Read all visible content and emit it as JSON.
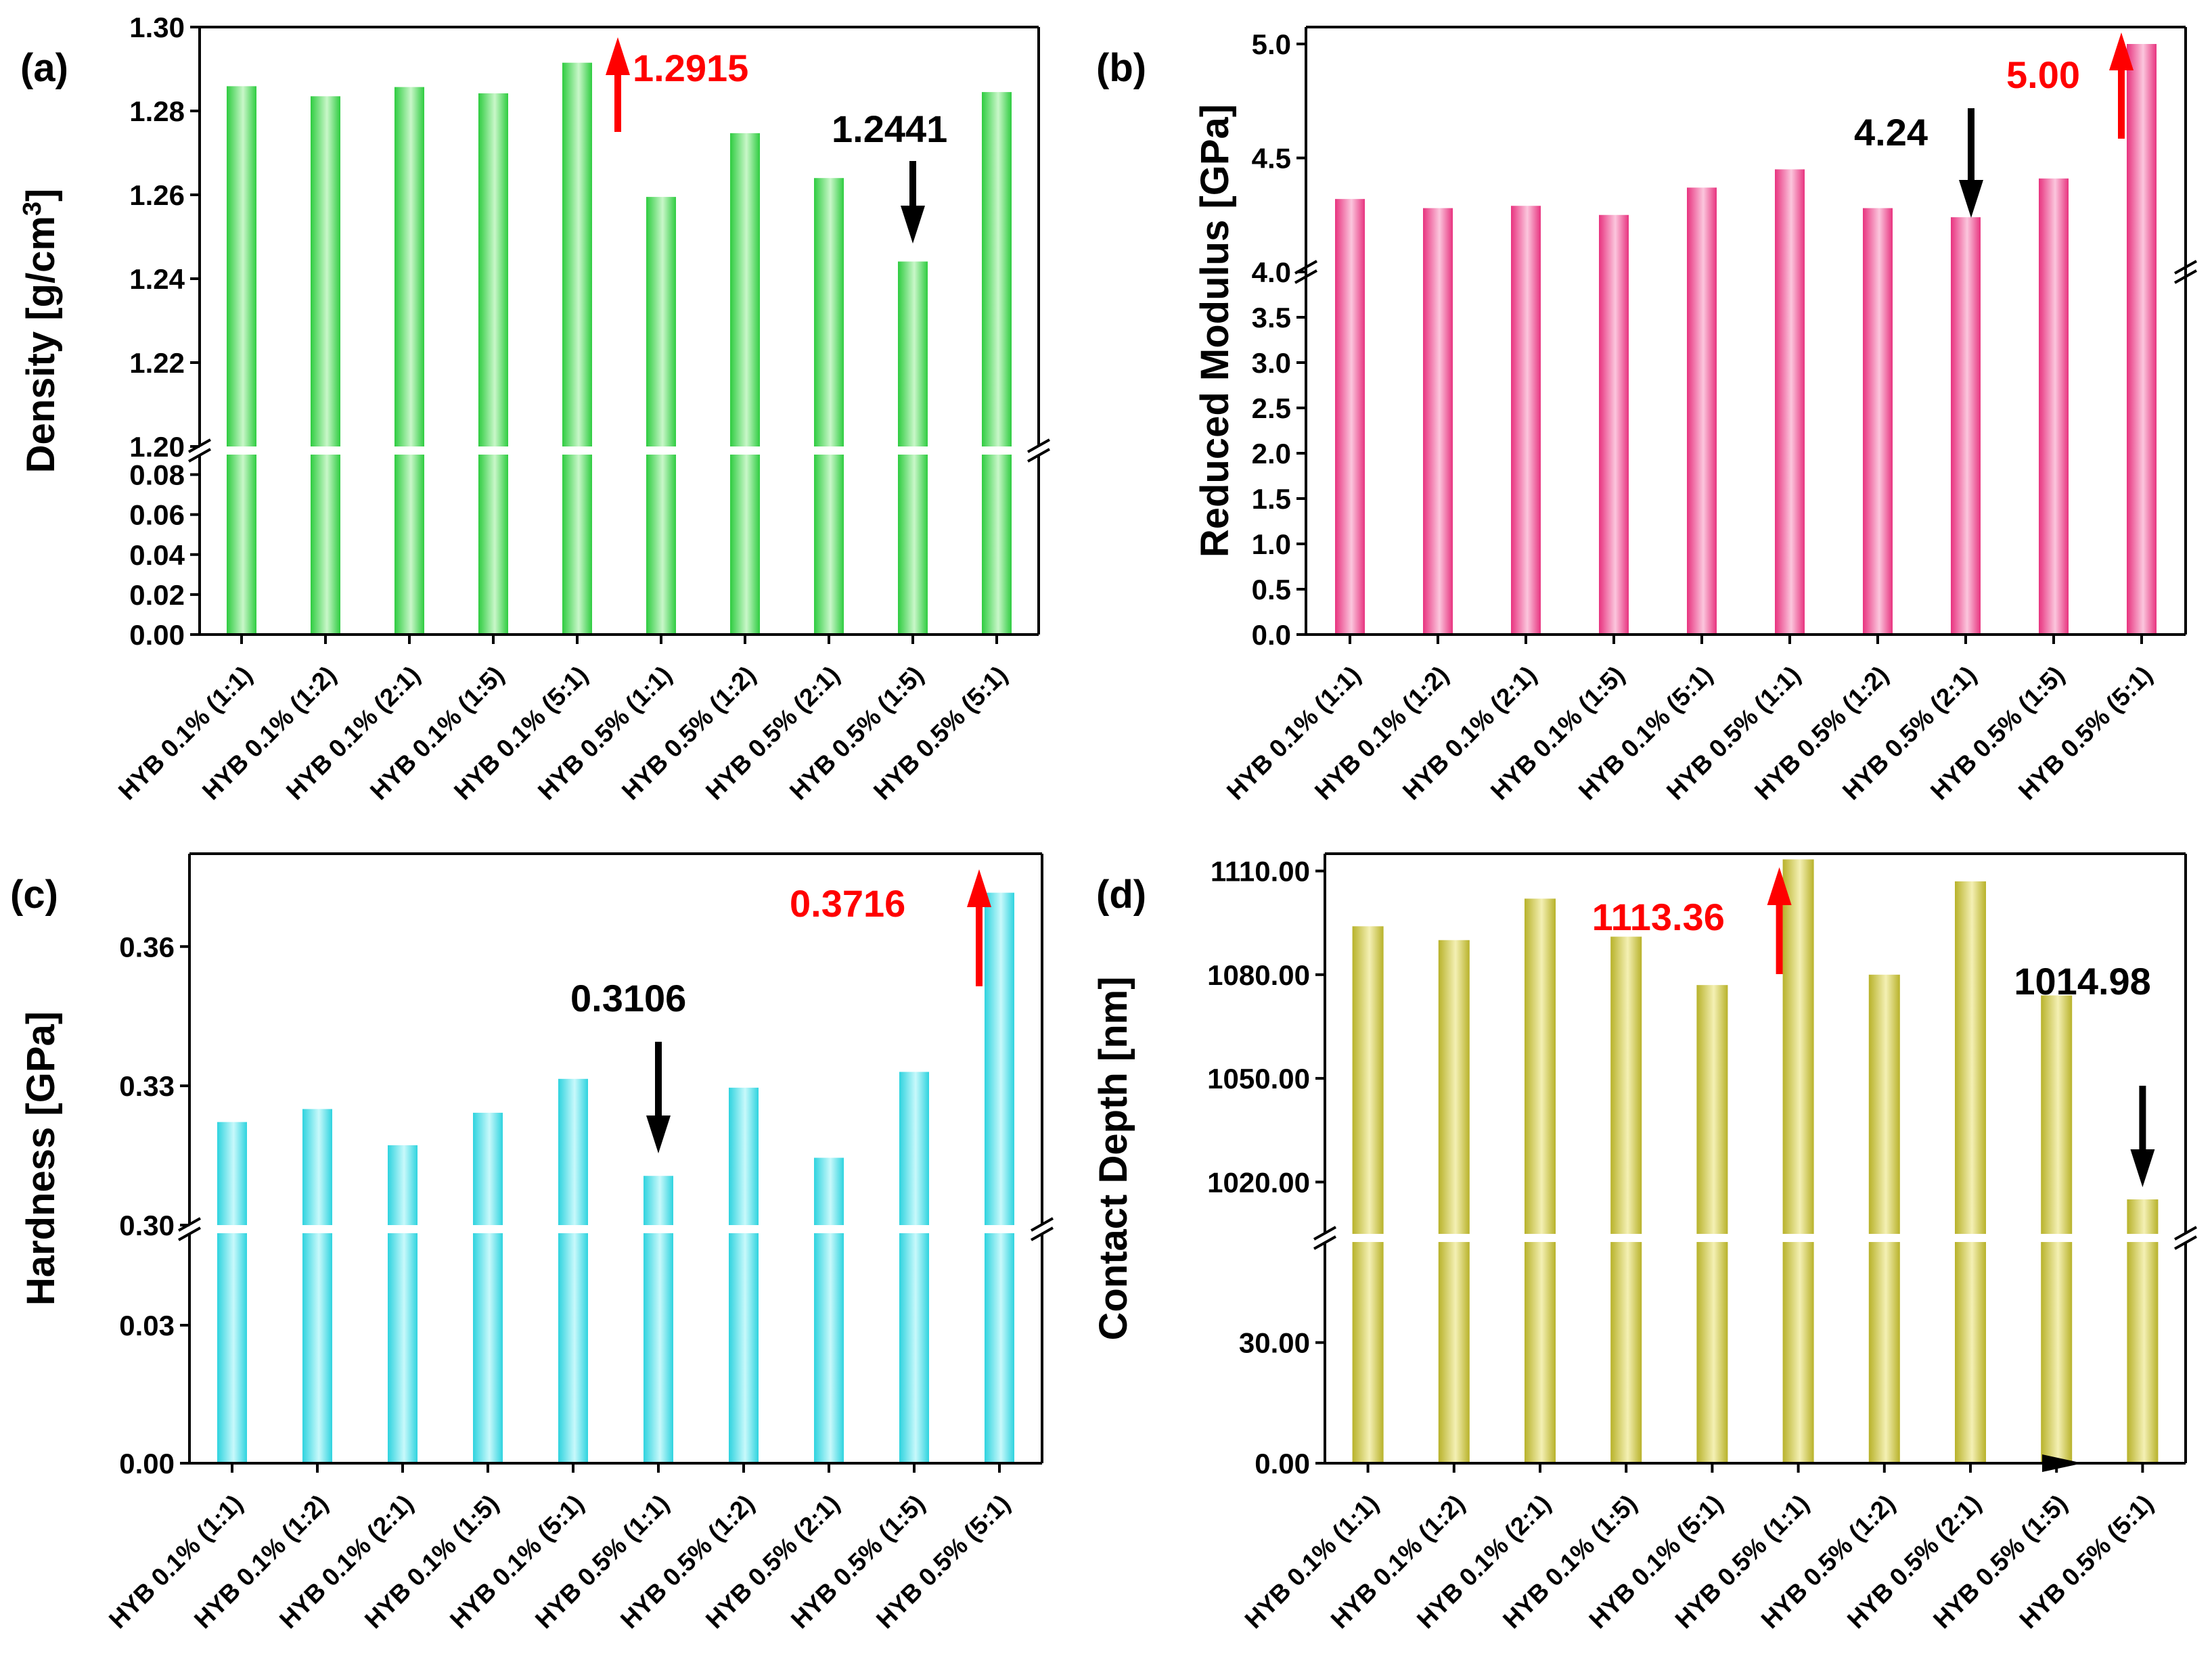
{
  "chart_data": [
    {
      "panel": "(a)",
      "type": "bar",
      "ylabel": "Density [g/cm",
      "ylabel_sup": "3",
      "ylabel_end": "]",
      "color": "#2ecc40",
      "color_light": "#c9f7c9",
      "categories": [
        "HYB 0.1% (1:1)",
        "HYB 0.1% (1:2)",
        "HYB 0.1% (2:1)",
        "HYB 0.1% (1:5)",
        "HYB 0.1%  (5:1)",
        "HYB 0.5% (1:1)",
        "HYB 0.5%  (1:2)",
        "HYB 0.5% (2:1)",
        "HYB 0.5% (1:5)",
        "HYB 0.5%  (5:1)"
      ],
      "values": [
        1.2859,
        1.2835,
        1.2857,
        1.2842,
        1.2915,
        1.2595,
        1.2747,
        1.264,
        1.2441,
        1.2845
      ],
      "axis_break": {
        "lower_range": [
          0,
          0.09
        ],
        "upper_range": [
          1.2,
          1.3
        ]
      },
      "lower_ticks": [
        "0.00",
        "0.02",
        "0.04",
        "0.06",
        "0.08"
      ],
      "upper_ticks": [
        "1.20",
        "1.22",
        "1.24",
        "1.26",
        "1.28",
        "1.30"
      ],
      "annotations": [
        {
          "text": "1.2915",
          "color": "#ff0000",
          "direction": "up",
          "category_index": 4
        },
        {
          "text": "1.2441",
          "color": "#000000",
          "direction": "down",
          "category_index": 8
        }
      ]
    },
    {
      "panel": "(b)",
      "type": "bar",
      "ylabel": "Reduced Modulus [GPa]",
      "color": "#e8337f",
      "color_light": "#fbc6dd",
      "categories": [
        "HYB 0.1% (1:1)",
        "HYB 0.1% (1:2)",
        "HYB 0.1% (2:1)",
        "HYB 0.1% (1:5)",
        "HYB 0.1%  (5:1)",
        "HYB 0.5% (1:1)",
        "HYB 0.5%  (1:2)",
        "HYB 0.5% (2:1)",
        "HYB 0.5% (1:5)",
        "HYB 0.5%  (5:1)"
      ],
      "values": [
        4.32,
        4.28,
        4.29,
        4.25,
        4.37,
        4.45,
        4.28,
        4.24,
        4.41,
        5.0
      ],
      "axis_break": {
        "lower_range": [
          0,
          4.0
        ],
        "upper_range": [
          4.0,
          5.0
        ]
      },
      "lower_ticks": [
        "0.0",
        "0.5",
        "1.0",
        "1.5",
        "2.0",
        "2.5",
        "3.0",
        "3.5",
        "4.0"
      ],
      "upper_ticks": [
        "4.5",
        "5.0"
      ],
      "annotations": [
        {
          "text": "4.24",
          "color": "#000000",
          "direction": "down",
          "category_index": 7
        },
        {
          "text": "5.00",
          "color": "#ff0000",
          "direction": "up",
          "category_index": 9
        }
      ]
    },
    {
      "panel": "(c)",
      "type": "bar",
      "ylabel": "Hardness [GPa]",
      "color": "#2ed3df",
      "color_light": "#c8f9fb",
      "categories": [
        "HYB 0.1% (1:1)",
        "HYB 0.1% (1:2)",
        "HYB 0.1% (2:1)",
        "HYB 0.1% (1:5)",
        "HYB 0.1%  (5:1)",
        "HYB 0.5% (1:1)",
        "HYB 0.5%  (1:2)",
        "HYB 0.5% (2:1)",
        "HYB 0.5% (1:5)",
        "HYB 0.5%  (5:1)"
      ],
      "values": [
        0.3222,
        0.325,
        0.3172,
        0.3242,
        0.3315,
        0.3106,
        0.3296,
        0.3145,
        0.333,
        0.3716
      ],
      "axis_break": {
        "lower_range": [
          0,
          0.05
        ],
        "upper_range": [
          0.3,
          0.38
        ]
      },
      "lower_ticks": [
        "0.00",
        "0.03"
      ],
      "upper_ticks": [
        "0.30",
        "0.33",
        "0.36"
      ],
      "annotations": [
        {
          "text": "0.3106",
          "color": "#000000",
          "direction": "down",
          "category_index": 5
        },
        {
          "text": "0.3716",
          "color": "#ff0000",
          "direction": "up",
          "category_index": 9
        }
      ]
    },
    {
      "panel": "(d)",
      "type": "bar",
      "ylabel": "Contact Depth [nm]",
      "color": "#b8b22a",
      "color_light": "#f4f0b4",
      "categories": [
        "HYB 0.1% (1:1)",
        "HYB 0.1% (1:2)",
        "HYB 0.1% (2:1)",
        "HYB 0.1% (1:5)",
        "HYB 0.1%  (5:1)",
        "HYB 0.5% (1:1)",
        "HYB 0.5%  (1:2)",
        "HYB 0.5% (2:1)",
        "HYB 0.5% (1:5)",
        "HYB 0.5%  (5:1)"
      ],
      "values": [
        1094,
        1090,
        1102,
        1091,
        1077,
        1113.36,
        1080,
        1107,
        1074,
        1014.98
      ],
      "axis_break": {
        "lower_range": [
          0,
          55
        ],
        "upper_range": [
          1005,
          1115
        ]
      },
      "lower_ticks": [
        "0.00",
        "30.00"
      ],
      "upper_ticks": [
        "1020.00",
        "1050.00",
        "1080.00",
        "1110.00"
      ],
      "annotations": [
        {
          "text": "1113.36",
          "color": "#ff0000",
          "direction": "up",
          "category_index": 5
        },
        {
          "text": "1014.98",
          "color": "#000000",
          "direction": "down",
          "category_index": 9
        }
      ]
    }
  ]
}
